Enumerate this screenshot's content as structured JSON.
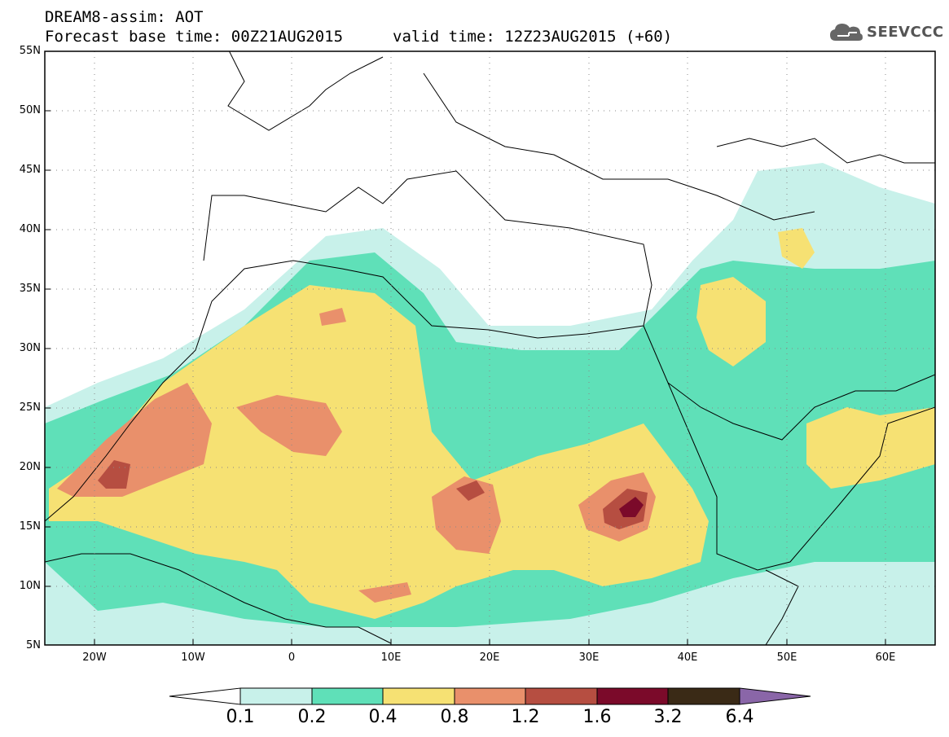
{
  "header": {
    "title_line1": "DREAM8-assim: AOT",
    "title_line2": "Forecast base time: 00Z21AUG2015",
    "valid_time": "valid time: 12Z23AUG2015 (+60)",
    "logo_text": "SEEVCCC",
    "logo_icon": "cloud-icon"
  },
  "map": {
    "lat_labels": [
      "55N",
      "50N",
      "45N",
      "40N",
      "35N",
      "30N",
      "25N",
      "20N",
      "15N",
      "10N",
      "5N"
    ],
    "lon_labels": [
      "20W",
      "10W",
      "0",
      "10E",
      "20E",
      "30E",
      "40E",
      "50E",
      "60E"
    ],
    "lat_range": [
      5,
      55
    ],
    "lon_range": [
      -25,
      65
    ],
    "grid": true
  },
  "colorbar": {
    "labels": [
      "0.1",
      "0.2",
      "0.4",
      "0.8",
      "1.2",
      "1.6",
      "3.2",
      "6.4"
    ],
    "colors": [
      "#ffffff",
      "#c8f1ea",
      "#5fe0b8",
      "#f6e173",
      "#e9906b",
      "#b64e41",
      "#7b0a2a",
      "#3a2a16",
      "#8a66a8"
    ]
  }
}
